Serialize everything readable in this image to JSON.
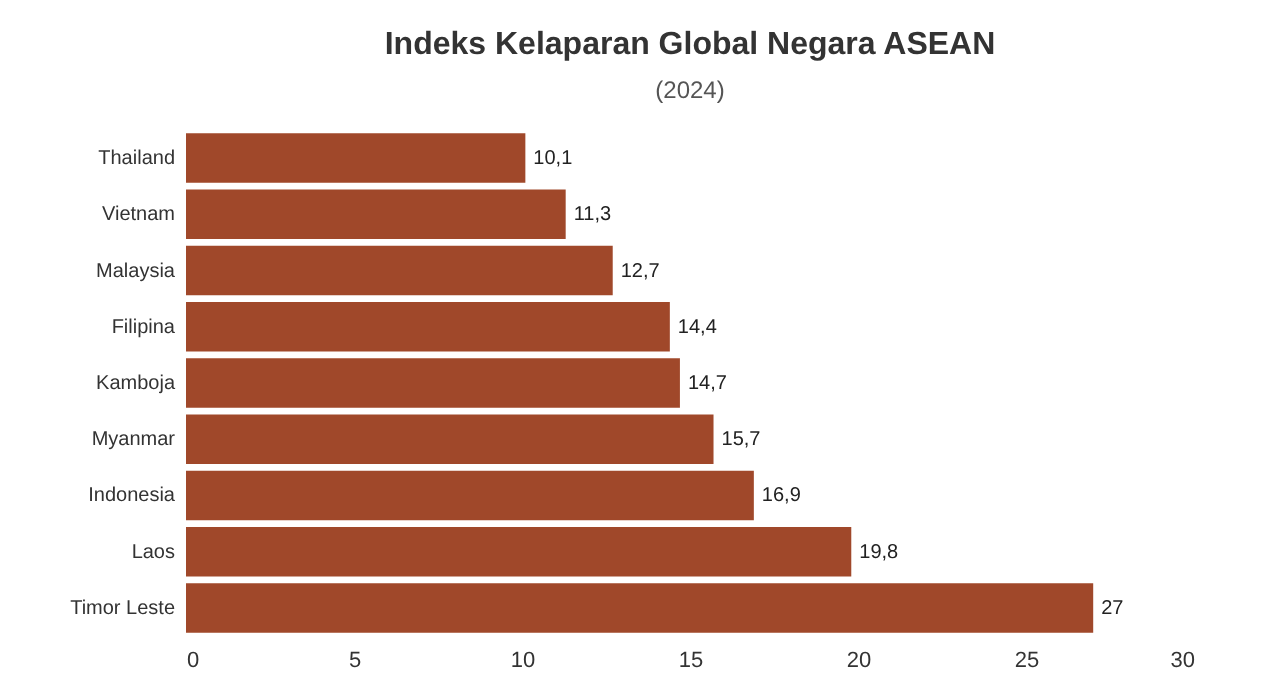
{
  "chart_data": {
    "type": "bar",
    "orientation": "horizontal",
    "title": "Indeks Kelaparan Global Negara ASEAN",
    "subtitle": "(2024)",
    "categories": [
      "Thailand",
      "Vietnam",
      "Malaysia",
      "Filipina",
      "Kamboja",
      "Myanmar",
      "Indonesia",
      "Laos",
      "Timor Leste"
    ],
    "values": [
      10.1,
      11.3,
      12.7,
      14.4,
      14.7,
      15.7,
      16.9,
      19.8,
      27
    ],
    "value_labels": [
      "10,1",
      "11,3",
      "12,7",
      "14,4",
      "14,7",
      "15,7",
      "16,9",
      "19,8",
      "27"
    ],
    "color": "#a0482a",
    "xlim": [
      0,
      30
    ],
    "xticks": [
      0,
      5,
      10,
      15,
      20,
      25,
      30
    ],
    "grid": false
  }
}
